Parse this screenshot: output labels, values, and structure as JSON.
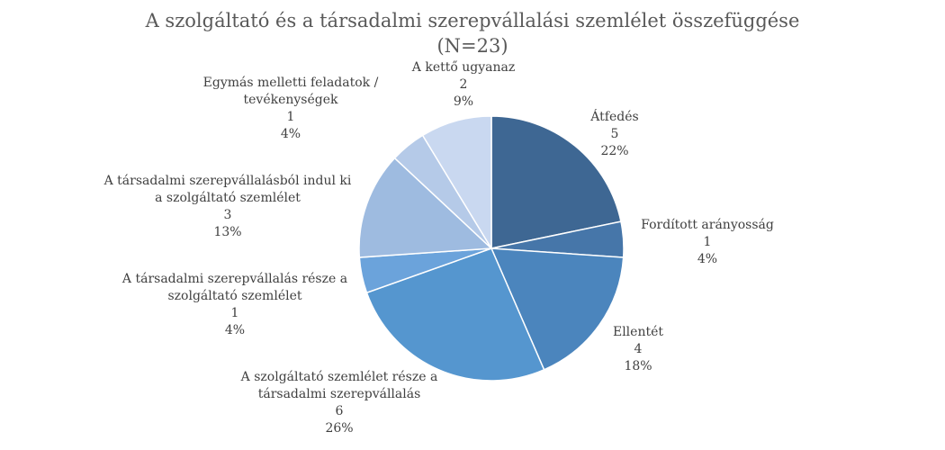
{
  "chart_data": {
    "type": "pie",
    "title": "A szolgáltató és a társadalmi szerepvállalási szemlélet összefüggése",
    "subtitle": "(N=23)",
    "slices": [
      {
        "lines": [
          "Átfedés"
        ],
        "value": 5,
        "percent": "22%",
        "color": "#3e6793"
      },
      {
        "lines": [
          "Fordított arányosság"
        ],
        "value": 1,
        "percent": "4%",
        "color": "#4676a9"
      },
      {
        "lines": [
          "Ellentét"
        ],
        "value": 4,
        "percent": "18%",
        "color": "#4b85bd"
      },
      {
        "lines": [
          "A szolgáltató szemlélet része a",
          "társadalmi szerepvállalás"
        ],
        "value": 6,
        "percent": "26%",
        "color": "#5596cf"
      },
      {
        "lines": [
          "A társadalmi szerepvállalás része a",
          "szolgáltató szemlélet"
        ],
        "value": 1,
        "percent": "4%",
        "color": "#6ba3db"
      },
      {
        "lines": [
          "A társadalmi szerepvállalásból indul ki",
          "a szolgáltató szemlélet"
        ],
        "value": 3,
        "percent": "13%",
        "color": "#9ebbe0"
      },
      {
        "lines": [
          "Egymás melletti feladatok /",
          "tevékenységek"
        ],
        "value": 1,
        "percent": "4%",
        "color": "#b5cae8"
      },
      {
        "lines": [
          "A kettő ugyanaz"
        ],
        "value": 2,
        "percent": "9%",
        "color": "#c9d8f0"
      }
    ]
  }
}
